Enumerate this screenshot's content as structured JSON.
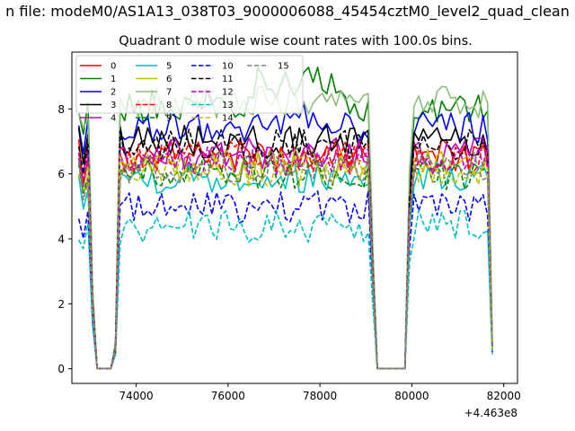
{
  "chart_data": {
    "type": "line",
    "suptitle": "n file: modeM0/AS1A13_038T03_9000006088_45454cztM0_level2_quad_clean",
    "title": "Quadrant 0 module wise count rates with 100.0s bins.",
    "xlabel": "",
    "ylabel": "",
    "x_offset_label": "+4.463e8",
    "xlim": [
      72600,
      82300
    ],
    "ylim": [
      -0.45,
      9.75
    ],
    "xticks": [
      74000,
      76000,
      78000,
      80000,
      82000
    ],
    "yticks": [
      0,
      2,
      4,
      6,
      8
    ],
    "grid": false,
    "legend_position": "top-left",
    "legend_ncol": 5,
    "x_start": 72750,
    "x_step": 100,
    "n_points": 91,
    "series": [
      {
        "name": "0",
        "color": "#ff0000",
        "dash": "solid",
        "level": 6.6,
        "e_start": 0.2,
        "e_mid": 0.0
      },
      {
        "name": "1",
        "color": "#008000",
        "dash": "solid",
        "level": 8.1,
        "e_start": -0.3,
        "e_mid": 0.7
      },
      {
        "name": "2",
        "color": "#0000ff",
        "dash": "solid",
        "level": 7.4,
        "e_start": 0.2,
        "e_mid": 0.3
      },
      {
        "name": "3",
        "color": "#000000",
        "dash": "solid",
        "level": 7.0,
        "e_start": 0.0,
        "e_mid": 0.0
      },
      {
        "name": "4",
        "color": "#bf00bf",
        "dash": "solid",
        "level": 6.6,
        "e_start": 0.0,
        "e_mid": 0.0
      },
      {
        "name": "5",
        "color": "#00bfbf",
        "dash": "solid",
        "level": 5.9,
        "e_start": 0.0,
        "e_mid": 0.0
      },
      {
        "name": "6",
        "color": "#bfbf00",
        "dash": "solid",
        "level": 6.3,
        "e_start": 0.0,
        "e_mid": 0.0
      },
      {
        "name": "7",
        "color": "#8abf7a",
        "dash": "solid",
        "level": 8.2,
        "e_start": 0.6,
        "e_mid": 0.0
      },
      {
        "name": "8",
        "color": "#ff0000",
        "dash": "dashed",
        "level": 6.5,
        "e_start": 0.0,
        "e_mid": 0.0
      },
      {
        "name": "9",
        "color": "#008000",
        "dash": "dashed",
        "level": 6.0,
        "e_start": 0.0,
        "e_mid": 0.0
      },
      {
        "name": "10",
        "color": "#0000ff",
        "dash": "dashed",
        "level": 5.0,
        "e_start": -0.3,
        "e_mid": 0.0
      },
      {
        "name": "11",
        "color": "#000000",
        "dash": "dashed",
        "level": 6.9,
        "e_start": 0.0,
        "e_mid": 0.0
      },
      {
        "name": "12",
        "color": "#bf00bf",
        "dash": "dashed",
        "level": 6.4,
        "e_start": 0.0,
        "e_mid": 0.0
      },
      {
        "name": "13",
        "color": "#00bfbf",
        "dash": "dashed",
        "level": 4.4,
        "e_start": -0.2,
        "e_mid": 0.0
      },
      {
        "name": "14",
        "color": "#bfbf00",
        "dash": "dashed",
        "level": 6.1,
        "e_start": 0.0,
        "e_mid": 0.0
      },
      {
        "name": "15",
        "color": "#808080",
        "dash": "dashed",
        "level": 6.2,
        "e_start": 0.0,
        "e_mid": 0.0
      }
    ]
  }
}
